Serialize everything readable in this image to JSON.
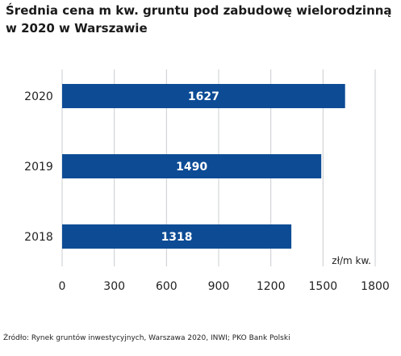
{
  "chart_data": {
    "type": "bar",
    "orientation": "horizontal",
    "title_line1": "Średnia cena m kw. gruntu pod zabudowę wielorodzinną",
    "title_line2": "w 2020 w Warszawie",
    "categories": [
      "2020",
      "2019",
      "2018"
    ],
    "values": [
      1627,
      1490,
      1318
    ],
    "data_labels": [
      "1627",
      "1490",
      "1318"
    ],
    "xlim": [
      0,
      1800
    ],
    "x_ticks": [
      0,
      300,
      600,
      900,
      1200,
      1500,
      1800
    ],
    "x_tick_labels": [
      "0",
      "300",
      "600",
      "900",
      "1200",
      "1500",
      "1800"
    ],
    "unit_label": "zł/m kw.",
    "grid": "vertical",
    "bar_color": "#0d4c95"
  },
  "source": "Źródło: Rynek gruntów inwestycyjnych, Warszawa 2020, INWI; PKO Bank Polski"
}
